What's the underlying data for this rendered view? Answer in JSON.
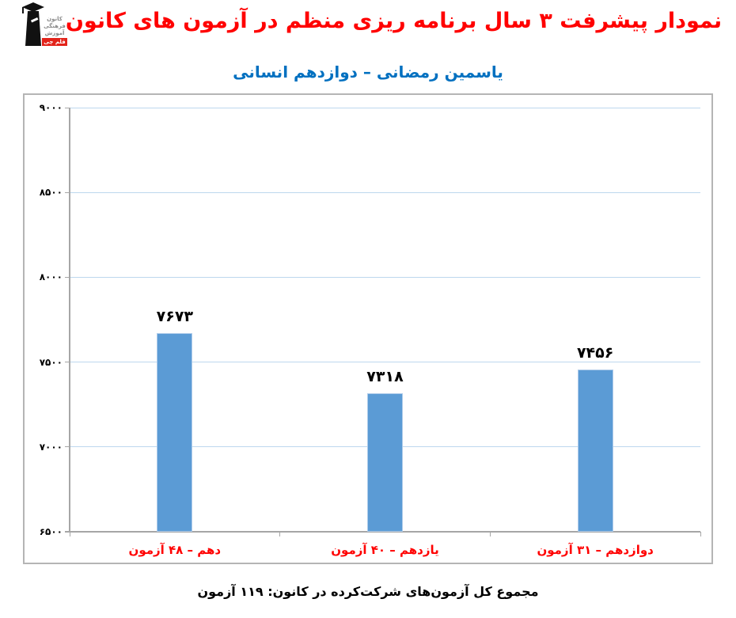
{
  "logo": {
    "org_lines": [
      "کانون",
      "فرهنگی",
      "آموزش"
    ],
    "brand": "قلم چی",
    "brand_bg": "#e2231a"
  },
  "header": {
    "title": "نمودار پیشرفت ۳ سال برنامه ریزی منظم در آزمون های کانون",
    "title_color": "#ff0000",
    "subtitle": "یاسمین رمضانی – دوازدهم انسانی",
    "subtitle_color": "#0070c0"
  },
  "footer": {
    "text": "مجموع کل آزمون‌های شرکت‌کرده در کانون: ۱۱۹ آزمون"
  },
  "chart_data": {
    "type": "bar",
    "title": "",
    "categories": [
      "دهم – ۴۸ آزمون",
      "یازدهم – ۴۰ آزمون",
      "دوازدهم – ۳۱ آزمون"
    ],
    "values": [
      7673,
      7318,
      7456
    ],
    "value_labels": [
      "۷۶۷۳",
      "۷۳۱۸",
      "۷۴۵۶"
    ],
    "xlabel": "",
    "ylabel": "",
    "ylim": [
      6500,
      9000
    ],
    "grid": true,
    "legend": "none",
    "y_ticks": [
      {
        "value": 9000,
        "label": "۹۰۰۰"
      },
      {
        "value": 8500,
        "label": "۸۵۰۰"
      },
      {
        "value": 8000,
        "label": "۸۰۰۰"
      },
      {
        "value": 7500,
        "label": "۷۵۰۰"
      },
      {
        "value": 7000,
        "label": "۷۰۰۰"
      },
      {
        "value": 6500,
        "label": "۶۵۰۰"
      }
    ],
    "colors": {
      "bar_fill": "#5b9bd5",
      "bar_border": "#aecbea",
      "gridline": "#bdd7ee",
      "axis": "#a6a6a6",
      "category_label": "#ff0000",
      "value_label": "#000000"
    }
  }
}
